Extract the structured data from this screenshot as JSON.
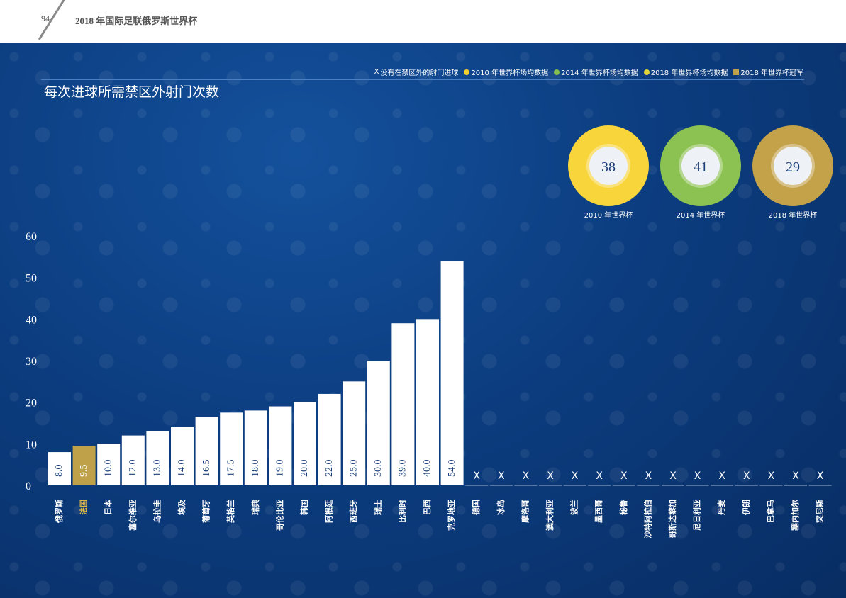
{
  "header": {
    "page_number": "94",
    "title": "2018 年国际足联俄罗斯世界杯"
  },
  "legend": [
    {
      "marker": "x",
      "label": "没有在禁区外的射门进球",
      "color": "#ffffff"
    },
    {
      "marker": "dot",
      "label": "2010 年世界杯场均数据",
      "color": "#f5cf2b"
    },
    {
      "marker": "dot",
      "label": "2014 年世界杯场均数据",
      "color": "#86c04a"
    },
    {
      "marker": "dot",
      "label": "2018 年世界杯场均数据",
      "color": "#e3d33a"
    },
    {
      "marker": "square",
      "label": "2018 年世界杯冠军",
      "color": "#bfa14a"
    }
  ],
  "colors": {
    "bar": "#ffffff",
    "champion_bar": "#bfa14a",
    "bar_value_text": "#1a3d78",
    "axis_text": "#ffffff"
  },
  "averages": [
    {
      "label": "2010 年世界杯",
      "value": "38",
      "ring_color": "#f8d53a"
    },
    {
      "label": "2014 年世界杯",
      "value": "41",
      "ring_color": "#8cc251"
    },
    {
      "label": "2018 年世界杯",
      "value": "29",
      "ring_color": "#c3a24a"
    }
  ],
  "chart_data": {
    "type": "bar",
    "title": "每次进球所需禁区外射门次数",
    "xlabel": "",
    "ylabel": "",
    "ylim": [
      0,
      60
    ],
    "yticks": [
      0,
      10,
      20,
      30,
      40,
      50,
      60
    ],
    "grid": false,
    "legend_position": "top-right",
    "no_goal_marker": "X",
    "highlight_category": "法国",
    "categories": [
      "俄罗斯",
      "法国",
      "日本",
      "塞尔维亚",
      "乌拉圭",
      "埃及",
      "葡萄牙",
      "英格兰",
      "瑞典",
      "哥伦比亚",
      "韩国",
      "阿根廷",
      "西班牙",
      "瑞士",
      "比利时",
      "巴西",
      "克罗地亚",
      "德国",
      "冰岛",
      "摩洛哥",
      "澳大利亚",
      "波兰",
      "墨西哥",
      "秘鲁",
      "沙特阿拉伯",
      "哥斯达黎加",
      "尼日利亚",
      "丹麦",
      "伊朗",
      "巴拿马",
      "塞内加尔",
      "突尼斯"
    ],
    "values": [
      8.0,
      9.5,
      10.0,
      12.0,
      13.0,
      14.0,
      16.5,
      17.5,
      18.0,
      19.0,
      20.0,
      22.0,
      25.0,
      30.0,
      39.0,
      40.0,
      54.0,
      null,
      null,
      null,
      null,
      null,
      null,
      null,
      null,
      null,
      null,
      null,
      null,
      null,
      null,
      null
    ],
    "value_labels": [
      "8.0",
      "9.5",
      "10.0",
      "12.0",
      "13.0",
      "14.0",
      "16.5",
      "17.5",
      "18.0",
      "19.0",
      "20.0",
      "22.0",
      "25.0",
      "30.0",
      "39.0",
      "40.0",
      "54.0",
      "X",
      "X",
      "X",
      "X",
      "X",
      "X",
      "X",
      "X",
      "X",
      "X",
      "X",
      "X",
      "X",
      "X",
      "X"
    ]
  }
}
